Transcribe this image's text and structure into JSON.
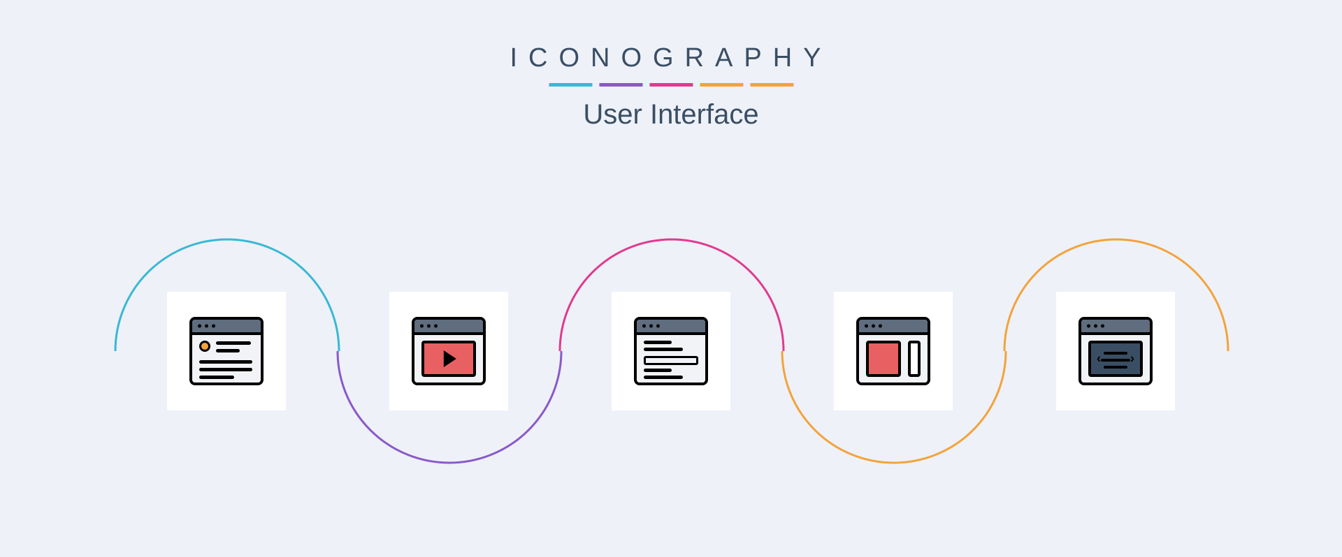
{
  "header": {
    "title": "ICONOGRAPHY",
    "title_color": "#3a4e63",
    "subtitle": "User Interface",
    "subtitle_color": "#3a4e63",
    "segments": [
      {
        "color": "#39b8d4"
      },
      {
        "color": "#8a59c9"
      },
      {
        "color": "#e13a8f"
      },
      {
        "color": "#f3a33b"
      },
      {
        "color": "#f3a33b"
      }
    ]
  },
  "background_color": "#eef1f8",
  "wave": {
    "arc_radius": 160,
    "stroke_width": 3,
    "colors": [
      "#39b8d4",
      "#8a59c9",
      "#e13a8f",
      "#f3a33b",
      "#f3a33b"
    ]
  },
  "icons": [
    {
      "name": "hero-window-icon",
      "titlebar": "#5f6d7e",
      "body": "#f1f3f6",
      "accent": "#f3a33b"
    },
    {
      "name": "video-window-icon",
      "titlebar": "#5f6d7e",
      "body": "#f1f3f6",
      "accent": "#e86062"
    },
    {
      "name": "form-window-icon",
      "titlebar": "#5f6d7e",
      "body": "#f1f3f6",
      "accent": "#f1f3f6"
    },
    {
      "name": "sidebar-window-icon",
      "titlebar": "#5f6d7e",
      "body": "#f1f3f6",
      "accent": "#e86062"
    },
    {
      "name": "code-window-icon",
      "titlebar": "#5f6d7e",
      "body": "#f1f3f6",
      "accent": "#3a4e63"
    }
  ]
}
